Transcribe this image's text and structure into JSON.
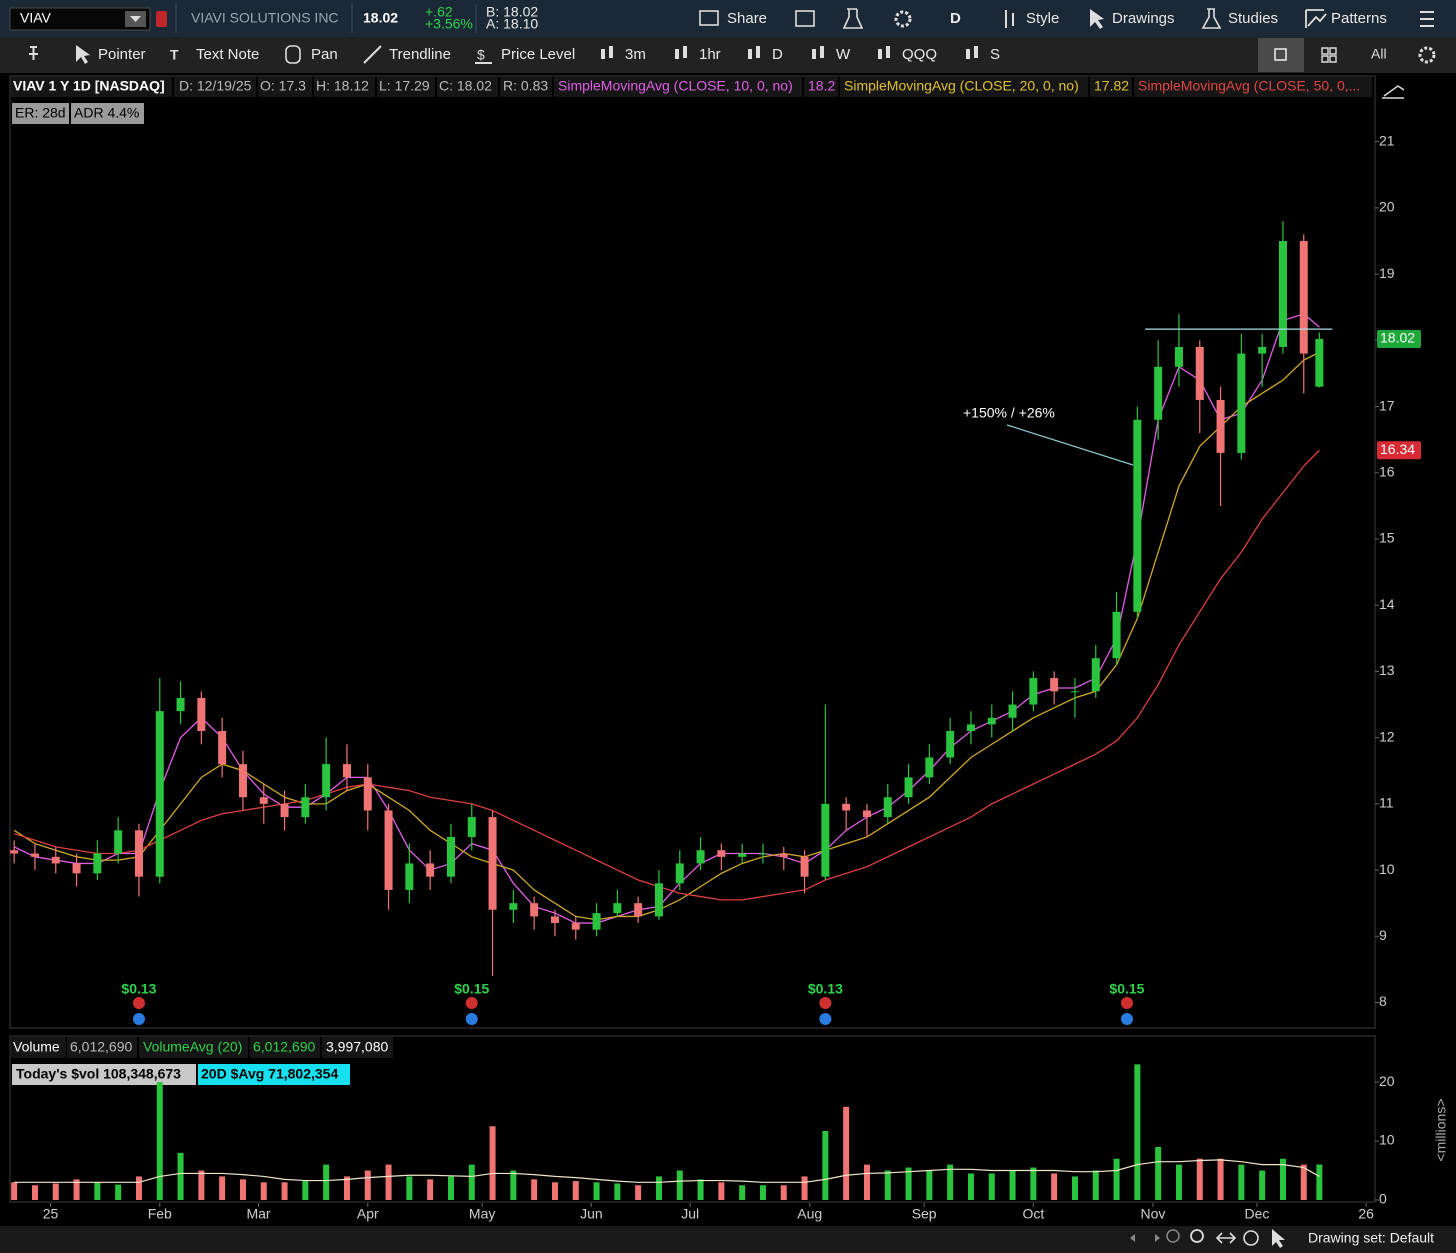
{
  "toolbar": {
    "symbol": "VIAV",
    "company": "VIAVI SOLUTIONS INC",
    "last": "18.02",
    "change": "+.62",
    "change_pct": "+3.56%",
    "bid": "B: 18.02",
    "ask": "A: 18.10",
    "buttons": [
      "Share",
      "D",
      "Style",
      "Drawings",
      "Studies",
      "Patterns"
    ],
    "tools": [
      "Pointer",
      "Text Note",
      "Pan",
      "Trendline",
      "Price Level",
      "3m",
      "1hr",
      "D",
      "W",
      "QQQ",
      "S"
    ],
    "all": "All"
  },
  "header": {
    "date": "D: 12/19/25",
    "open": "O: 17.3",
    "high": "H: 18.12",
    "low": "L: 17.29",
    "close": "C: 18.02",
    "range": "R: 0.83",
    "sma10_value": "18.2",
    "sma20_value": "17.82",
    "er": "ER: 28d",
    "adr": "ADR 4.4%"
  },
  "volume_header": {
    "volume": "6,012,690",
    "avg_current": "6,012,690",
    "avg_value": "3,997,080",
    "today_dollar_vol": "Today's $vol 108,348,673",
    "avg_dollar_vol": "20D $Avg 71,802,354"
  },
  "status": "Drawing set: Default",
  "chart_data": {
    "type": "candlestick",
    "title": "VIAV 1 Y 1D [NASDAQ]",
    "x": [
      0,
      4,
      8,
      12,
      16,
      20,
      24,
      28,
      32,
      36,
      40,
      44,
      48,
      52,
      56,
      60,
      64,
      68,
      72,
      76,
      80,
      84,
      88,
      92,
      96,
      100,
      104,
      108,
      112,
      116,
      120,
      124,
      128,
      132,
      136,
      140,
      144,
      148,
      152,
      156,
      160,
      164,
      168,
      172,
      176,
      180,
      184,
      188,
      192,
      196,
      200,
      204,
      208,
      212,
      216,
      220,
      224,
      228,
      232,
      236,
      240,
      244,
      248,
      251
    ],
    "open": [
      10.3,
      10.25,
      10.2,
      10.1,
      9.95,
      10.25,
      10.6,
      9.9,
      12.4,
      12.6,
      12.1,
      11.6,
      11.1,
      11.0,
      10.8,
      11.1,
      11.6,
      11.4,
      10.9,
      9.7,
      10.1,
      9.9,
      10.5,
      10.8,
      9.4,
      9.5,
      9.3,
      9.2,
      9.1,
      9.35,
      9.5,
      9.3,
      9.8,
      10.1,
      10.3,
      10.2,
      10.25,
      10.25,
      10.2,
      9.9,
      11.0,
      10.9,
      10.8,
      11.1,
      11.4,
      11.7,
      12.1,
      12.2,
      12.3,
      12.5,
      12.9,
      12.7,
      12.7,
      13.2,
      13.9,
      16.8,
      17.6,
      17.9,
      17.1,
      16.3,
      17.8,
      17.9,
      19.5,
      17.3
    ],
    "high": [
      10.45,
      10.4,
      10.35,
      10.25,
      10.45,
      10.8,
      10.7,
      12.9,
      12.85,
      12.7,
      12.3,
      11.8,
      11.3,
      11.2,
      11.3,
      12.0,
      11.9,
      11.6,
      11.0,
      10.4,
      10.3,
      10.7,
      11.0,
      10.9,
      9.7,
      9.6,
      9.4,
      9.3,
      9.5,
      9.7,
      9.6,
      10.0,
      10.3,
      10.5,
      10.4,
      10.4,
      10.4,
      10.35,
      10.3,
      12.5,
      11.1,
      11.0,
      11.3,
      11.6,
      11.9,
      12.3,
      12.4,
      12.5,
      12.7,
      13.0,
      13.0,
      12.9,
      13.4,
      14.2,
      17.0,
      18.0,
      18.4,
      18.0,
      17.3,
      18.1,
      18.1,
      19.8,
      19.6,
      18.12
    ],
    "low": [
      10.1,
      10.0,
      9.95,
      9.75,
      9.85,
      10.1,
      9.6,
      9.8,
      12.2,
      11.9,
      11.4,
      10.9,
      10.7,
      10.6,
      10.7,
      10.9,
      11.2,
      10.6,
      9.4,
      9.5,
      9.7,
      9.8,
      10.3,
      8.4,
      9.2,
      9.1,
      9.0,
      8.95,
      9.0,
      9.3,
      9.2,
      9.25,
      9.7,
      10.0,
      10.0,
      10.1,
      10.1,
      10.0,
      9.65,
      9.85,
      10.6,
      10.5,
      10.7,
      11.0,
      11.3,
      11.6,
      11.9,
      12.0,
      12.1,
      12.4,
      12.5,
      12.3,
      12.6,
      13.1,
      13.8,
      16.5,
      17.3,
      16.6,
      15.5,
      16.2,
      17.3,
      17.8,
      17.2,
      17.29
    ],
    "close": [
      10.25,
      10.2,
      10.1,
      9.95,
      10.25,
      10.6,
      9.9,
      12.4,
      12.6,
      12.1,
      11.6,
      11.1,
      11.0,
      10.8,
      11.1,
      11.6,
      11.4,
      10.9,
      9.7,
      10.1,
      9.9,
      10.5,
      10.8,
      9.4,
      9.5,
      9.3,
      9.2,
      9.1,
      9.35,
      9.5,
      9.3,
      9.8,
      10.1,
      10.3,
      10.2,
      10.25,
      10.25,
      10.2,
      9.9,
      11.0,
      10.9,
      10.8,
      11.1,
      11.4,
      11.7,
      12.1,
      12.2,
      12.3,
      12.5,
      12.9,
      12.7,
      12.7,
      13.2,
      13.9,
      16.8,
      17.6,
      17.9,
      17.1,
      16.3,
      17.8,
      17.9,
      19.5,
      17.8,
      18.02
    ],
    "up_color": "#2bc43f",
    "down_color": "#f07474",
    "series": [
      {
        "name": "SimpleMovingAvg (CLOSE, 10, 0, no)",
        "color": "#e25ee8",
        "values": [
          10.35,
          10.2,
          10.15,
          10.1,
          10.1,
          10.25,
          10.25,
          11.2,
          12.0,
          12.3,
          12.0,
          11.5,
          11.15,
          10.95,
          10.95,
          11.15,
          11.4,
          11.4,
          10.9,
          10.3,
          10.0,
          10.1,
          10.4,
          10.3,
          9.8,
          9.45,
          9.35,
          9.2,
          9.2,
          9.3,
          9.4,
          9.45,
          9.8,
          10.1,
          10.25,
          10.25,
          10.25,
          10.2,
          10.1,
          10.3,
          10.6,
          10.8,
          10.95,
          11.2,
          11.5,
          11.85,
          12.1,
          12.25,
          12.4,
          12.65,
          12.75,
          12.75,
          12.9,
          13.5,
          15.0,
          16.8,
          17.6,
          17.4,
          16.8,
          16.9,
          17.4,
          18.3,
          18.4,
          18.2
        ]
      },
      {
        "name": "SimpleMovingAvg (CLOSE, 20, 0, no)",
        "color": "#d0a92a",
        "values": [
          10.6,
          10.4,
          10.3,
          10.2,
          10.15,
          10.15,
          10.2,
          10.6,
          11.0,
          11.4,
          11.6,
          11.5,
          11.3,
          11.1,
          11.0,
          11.0,
          11.2,
          11.3,
          11.1,
          10.9,
          10.6,
          10.4,
          10.2,
          10.1,
          10.0,
          9.7,
          9.5,
          9.3,
          9.25,
          9.3,
          9.3,
          9.4,
          9.55,
          9.75,
          9.95,
          10.1,
          10.2,
          10.25,
          10.2,
          10.3,
          10.4,
          10.5,
          10.7,
          10.9,
          11.1,
          11.4,
          11.7,
          11.9,
          12.1,
          12.3,
          12.45,
          12.6,
          12.7,
          13.1,
          13.8,
          14.8,
          15.8,
          16.4,
          16.7,
          17.0,
          17.2,
          17.4,
          17.7,
          17.82
        ]
      },
      {
        "name": "SimpleMovingAvg (CLOSE, 50, 0,...",
        "color": "#dd4040",
        "values": [
          10.55,
          10.45,
          10.35,
          10.3,
          10.25,
          10.25,
          10.3,
          10.45,
          10.6,
          10.75,
          10.85,
          10.9,
          10.95,
          11.0,
          11.05,
          11.15,
          11.25,
          11.3,
          11.25,
          11.2,
          11.1,
          11.05,
          11.0,
          10.9,
          10.75,
          10.6,
          10.45,
          10.3,
          10.15,
          10.0,
          9.85,
          9.75,
          9.65,
          9.6,
          9.55,
          9.55,
          9.6,
          9.65,
          9.7,
          9.85,
          9.95,
          10.05,
          10.2,
          10.35,
          10.5,
          10.65,
          10.8,
          11.0,
          11.15,
          11.3,
          11.45,
          11.6,
          11.75,
          11.95,
          12.3,
          12.8,
          13.4,
          13.9,
          14.4,
          14.8,
          15.3,
          15.7,
          16.1,
          16.34
        ]
      }
    ],
    "xlim": [
      -0.8,
      261.7
    ],
    "xticks": [
      {
        "value": 7,
        "label": "25"
      },
      {
        "value": 28,
        "label": "Feb"
      },
      {
        "value": 47,
        "label": "Mar"
      },
      {
        "value": 68,
        "label": "Apr"
      },
      {
        "value": 90,
        "label": "May"
      },
      {
        "value": 111,
        "label": "Jun"
      },
      {
        "value": 130,
        "label": "Jul"
      },
      {
        "value": 153,
        "label": "Aug"
      },
      {
        "value": 175,
        "label": "Sep"
      },
      {
        "value": 196,
        "label": "Oct"
      },
      {
        "value": 219,
        "label": "Nov"
      },
      {
        "value": 239,
        "label": "Dec"
      },
      {
        "value": 260,
        "label": "26"
      }
    ],
    "ylim": [
      7.63,
      21.66
    ],
    "yticks": [
      8,
      9,
      10,
      11,
      12,
      13,
      14,
      15,
      16,
      17,
      18,
      19,
      20,
      21
    ],
    "price_tags": [
      {
        "value": 18.02,
        "label": "18.02",
        "color": "#1fa83a"
      },
      {
        "value": 16.34,
        "label": "16.34",
        "color": "#d82a34"
      }
    ],
    "level_lines": [
      {
        "value": 18.17,
        "from": 217.5,
        "to": 253.5,
        "color": "#a8dfe6"
      }
    ],
    "annotation": "+150% / +26%",
    "events": [
      {
        "x": 24,
        "label": "$0.13"
      },
      {
        "x": 88,
        "label": "$0.15"
      },
      {
        "x": 156,
        "label": "$0.13"
      },
      {
        "x": 214,
        "label": "$0.15"
      }
    ],
    "volume": {
      "name": "Volume",
      "avg_name": "VolumeAvg (20)",
      "axis_label": "<millions>",
      "values": [
        3,
        2.5,
        2.8,
        3.5,
        3,
        2.6,
        4,
        20,
        8,
        5,
        4,
        3.5,
        3,
        3,
        3.2,
        6,
        4,
        5,
        6,
        4,
        3.5,
        4,
        6,
        12.5,
        5,
        3.5,
        3,
        3.2,
        3,
        2.8,
        2.5,
        4,
        5,
        3.5,
        3,
        2.5,
        2.5,
        2.5,
        4,
        11.7,
        15.8,
        6,
        5,
        5.5,
        5,
        6,
        4.5,
        4.5,
        5,
        5.5,
        4.5,
        4,
        5,
        7,
        23,
        9,
        6,
        7,
        7,
        6,
        5,
        7,
        6,
        6.01269
      ],
      "avg_values": [
        3,
        3,
        3,
        3,
        3,
        3,
        3,
        4,
        4.5,
        4.5,
        4.5,
        4.3,
        4,
        3.5,
        3.3,
        3.3,
        3.5,
        3.8,
        4,
        4.2,
        4.2,
        4.1,
        4,
        4.5,
        4.5,
        4.3,
        4,
        3.8,
        3.5,
        3.2,
        3,
        3,
        3.2,
        3.3,
        3.3,
        3.2,
        3,
        3,
        3,
        3.5,
        4.2,
        4.5,
        4.6,
        4.8,
        5,
        5.2,
        5.2,
        5,
        5,
        5,
        5,
        4.8,
        4.8,
        5,
        6,
        6.5,
        6.5,
        6.7,
        6.8,
        6.5,
        6,
        6,
        5.5,
        3.99708
      ],
      "avg_color": "#f2e6c8",
      "ylim": [
        0,
        23.4
      ],
      "yticks": [
        0,
        10,
        20
      ]
    }
  }
}
